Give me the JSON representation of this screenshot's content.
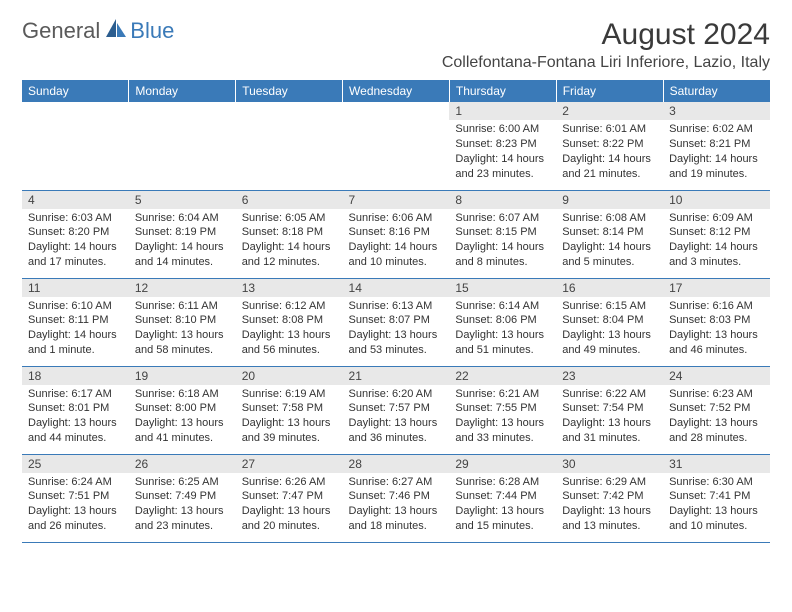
{
  "logo": {
    "text1": "General",
    "text2": "Blue"
  },
  "title": "August 2024",
  "location": "Collefontana-Fontana Liri Inferiore, Lazio, Italy",
  "colors": {
    "header_bg": "#3a7ab8",
    "header_fg": "#ffffff",
    "daynum_bg": "#e8e8e8",
    "border": "#3a7ab8",
    "text": "#333333",
    "logo_gray": "#5a5a5a",
    "logo_blue": "#3a7ab8"
  },
  "weekdays": [
    "Sunday",
    "Monday",
    "Tuesday",
    "Wednesday",
    "Thursday",
    "Friday",
    "Saturday"
  ],
  "weeks": [
    [
      {
        "day": "",
        "sunrise": "",
        "sunset": "",
        "daylight": ""
      },
      {
        "day": "",
        "sunrise": "",
        "sunset": "",
        "daylight": ""
      },
      {
        "day": "",
        "sunrise": "",
        "sunset": "",
        "daylight": ""
      },
      {
        "day": "",
        "sunrise": "",
        "sunset": "",
        "daylight": ""
      },
      {
        "day": "1",
        "sunrise": "Sunrise: 6:00 AM",
        "sunset": "Sunset: 8:23 PM",
        "daylight": "Daylight: 14 hours and 23 minutes."
      },
      {
        "day": "2",
        "sunrise": "Sunrise: 6:01 AM",
        "sunset": "Sunset: 8:22 PM",
        "daylight": "Daylight: 14 hours and 21 minutes."
      },
      {
        "day": "3",
        "sunrise": "Sunrise: 6:02 AM",
        "sunset": "Sunset: 8:21 PM",
        "daylight": "Daylight: 14 hours and 19 minutes."
      }
    ],
    [
      {
        "day": "4",
        "sunrise": "Sunrise: 6:03 AM",
        "sunset": "Sunset: 8:20 PM",
        "daylight": "Daylight: 14 hours and 17 minutes."
      },
      {
        "day": "5",
        "sunrise": "Sunrise: 6:04 AM",
        "sunset": "Sunset: 8:19 PM",
        "daylight": "Daylight: 14 hours and 14 minutes."
      },
      {
        "day": "6",
        "sunrise": "Sunrise: 6:05 AM",
        "sunset": "Sunset: 8:18 PM",
        "daylight": "Daylight: 14 hours and 12 minutes."
      },
      {
        "day": "7",
        "sunrise": "Sunrise: 6:06 AM",
        "sunset": "Sunset: 8:16 PM",
        "daylight": "Daylight: 14 hours and 10 minutes."
      },
      {
        "day": "8",
        "sunrise": "Sunrise: 6:07 AM",
        "sunset": "Sunset: 8:15 PM",
        "daylight": "Daylight: 14 hours and 8 minutes."
      },
      {
        "day": "9",
        "sunrise": "Sunrise: 6:08 AM",
        "sunset": "Sunset: 8:14 PM",
        "daylight": "Daylight: 14 hours and 5 minutes."
      },
      {
        "day": "10",
        "sunrise": "Sunrise: 6:09 AM",
        "sunset": "Sunset: 8:12 PM",
        "daylight": "Daylight: 14 hours and 3 minutes."
      }
    ],
    [
      {
        "day": "11",
        "sunrise": "Sunrise: 6:10 AM",
        "sunset": "Sunset: 8:11 PM",
        "daylight": "Daylight: 14 hours and 1 minute."
      },
      {
        "day": "12",
        "sunrise": "Sunrise: 6:11 AM",
        "sunset": "Sunset: 8:10 PM",
        "daylight": "Daylight: 13 hours and 58 minutes."
      },
      {
        "day": "13",
        "sunrise": "Sunrise: 6:12 AM",
        "sunset": "Sunset: 8:08 PM",
        "daylight": "Daylight: 13 hours and 56 minutes."
      },
      {
        "day": "14",
        "sunrise": "Sunrise: 6:13 AM",
        "sunset": "Sunset: 8:07 PM",
        "daylight": "Daylight: 13 hours and 53 minutes."
      },
      {
        "day": "15",
        "sunrise": "Sunrise: 6:14 AM",
        "sunset": "Sunset: 8:06 PM",
        "daylight": "Daylight: 13 hours and 51 minutes."
      },
      {
        "day": "16",
        "sunrise": "Sunrise: 6:15 AM",
        "sunset": "Sunset: 8:04 PM",
        "daylight": "Daylight: 13 hours and 49 minutes."
      },
      {
        "day": "17",
        "sunrise": "Sunrise: 6:16 AM",
        "sunset": "Sunset: 8:03 PM",
        "daylight": "Daylight: 13 hours and 46 minutes."
      }
    ],
    [
      {
        "day": "18",
        "sunrise": "Sunrise: 6:17 AM",
        "sunset": "Sunset: 8:01 PM",
        "daylight": "Daylight: 13 hours and 44 minutes."
      },
      {
        "day": "19",
        "sunrise": "Sunrise: 6:18 AM",
        "sunset": "Sunset: 8:00 PM",
        "daylight": "Daylight: 13 hours and 41 minutes."
      },
      {
        "day": "20",
        "sunrise": "Sunrise: 6:19 AM",
        "sunset": "Sunset: 7:58 PM",
        "daylight": "Daylight: 13 hours and 39 minutes."
      },
      {
        "day": "21",
        "sunrise": "Sunrise: 6:20 AM",
        "sunset": "Sunset: 7:57 PM",
        "daylight": "Daylight: 13 hours and 36 minutes."
      },
      {
        "day": "22",
        "sunrise": "Sunrise: 6:21 AM",
        "sunset": "Sunset: 7:55 PM",
        "daylight": "Daylight: 13 hours and 33 minutes."
      },
      {
        "day": "23",
        "sunrise": "Sunrise: 6:22 AM",
        "sunset": "Sunset: 7:54 PM",
        "daylight": "Daylight: 13 hours and 31 minutes."
      },
      {
        "day": "24",
        "sunrise": "Sunrise: 6:23 AM",
        "sunset": "Sunset: 7:52 PM",
        "daylight": "Daylight: 13 hours and 28 minutes."
      }
    ],
    [
      {
        "day": "25",
        "sunrise": "Sunrise: 6:24 AM",
        "sunset": "Sunset: 7:51 PM",
        "daylight": "Daylight: 13 hours and 26 minutes."
      },
      {
        "day": "26",
        "sunrise": "Sunrise: 6:25 AM",
        "sunset": "Sunset: 7:49 PM",
        "daylight": "Daylight: 13 hours and 23 minutes."
      },
      {
        "day": "27",
        "sunrise": "Sunrise: 6:26 AM",
        "sunset": "Sunset: 7:47 PM",
        "daylight": "Daylight: 13 hours and 20 minutes."
      },
      {
        "day": "28",
        "sunrise": "Sunrise: 6:27 AM",
        "sunset": "Sunset: 7:46 PM",
        "daylight": "Daylight: 13 hours and 18 minutes."
      },
      {
        "day": "29",
        "sunrise": "Sunrise: 6:28 AM",
        "sunset": "Sunset: 7:44 PM",
        "daylight": "Daylight: 13 hours and 15 minutes."
      },
      {
        "day": "30",
        "sunrise": "Sunrise: 6:29 AM",
        "sunset": "Sunset: 7:42 PM",
        "daylight": "Daylight: 13 hours and 13 minutes."
      },
      {
        "day": "31",
        "sunrise": "Sunrise: 6:30 AM",
        "sunset": "Sunset: 7:41 PM",
        "daylight": "Daylight: 13 hours and 10 minutes."
      }
    ]
  ]
}
